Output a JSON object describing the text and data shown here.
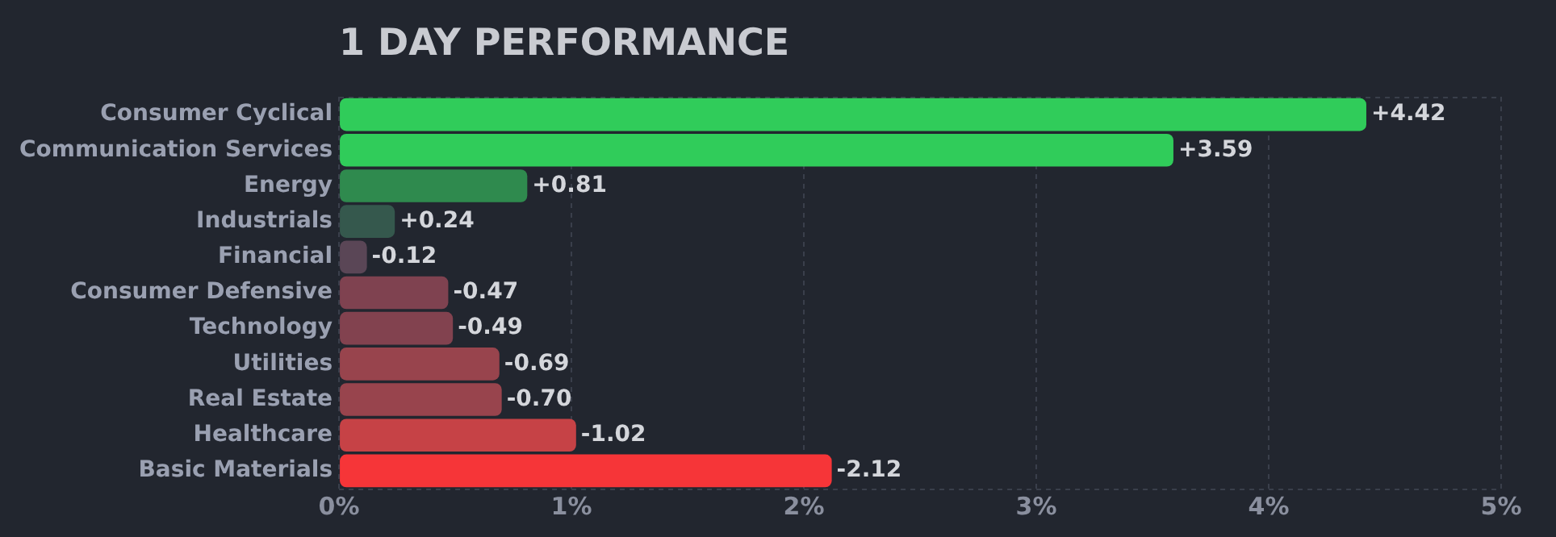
{
  "chart_data": {
    "type": "bar",
    "orientation": "horizontal",
    "title": "1 DAY PERFORMANCE",
    "categories": [
      "Consumer Cyclical",
      "Communication Services",
      "Energy",
      "Industrials",
      "Financial",
      "Consumer Defensive",
      "Technology",
      "Utilities",
      "Real Estate",
      "Healthcare",
      "Basic Materials"
    ],
    "values": [
      4.42,
      3.59,
      0.81,
      0.24,
      -0.12,
      -0.47,
      -0.49,
      -0.69,
      -0.7,
      -1.02,
      -2.12
    ],
    "base": [
      0,
      0,
      0,
      0,
      0.12,
      0.47,
      0.49,
      0.69,
      0.7,
      1.02,
      2.12
    ],
    "value_labels": [
      "+4.42",
      "+3.59",
      "+0.81",
      "+0.24",
      "-0.12",
      "-0.47",
      "-0.49",
      "-0.69",
      "-0.70",
      "-1.02",
      "-2.12"
    ],
    "colors": [
      "#30cc5a",
      "#30cc5a",
      "#2f8a4e",
      "#35584d",
      "#5a4656",
      "#7f4250",
      "#82424f",
      "#98444d",
      "#98444d",
      "#c64246",
      "#f63538"
    ],
    "xlim": [
      0,
      5
    ],
    "xticks": [
      {
        "value": 0,
        "label": "0%"
      },
      {
        "value": 1,
        "label": "1%"
      },
      {
        "value": 2,
        "label": "2%"
      },
      {
        "value": 3,
        "label": "3%"
      },
      {
        "value": 4,
        "label": "4%"
      },
      {
        "value": 5,
        "label": "5%"
      }
    ],
    "grid": "x",
    "legend": false
  }
}
